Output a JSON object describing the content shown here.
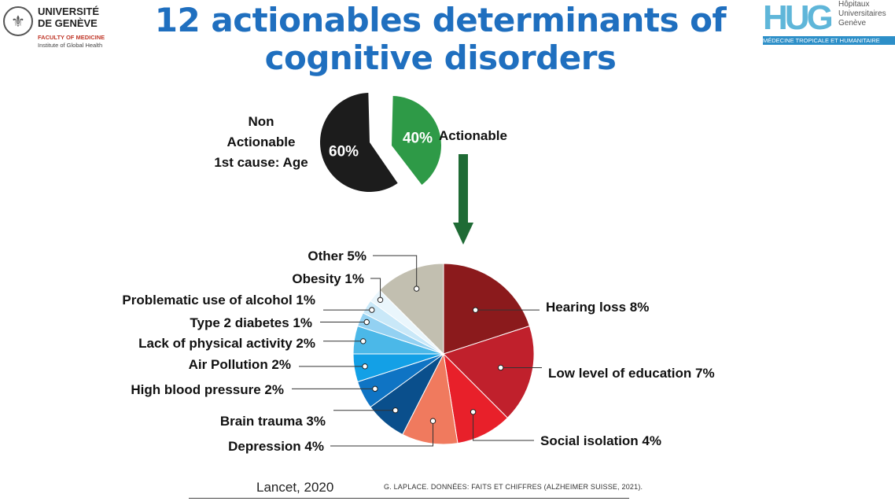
{
  "title_line1": "12 actionables determinants of",
  "title_line2": "cognitive disorders",
  "logos": {
    "unige": {
      "name_line1": "UNIVERSITÉ",
      "name_line2": "DE GENÈVE",
      "faculty": "FACULTY OF MEDICINE",
      "institute": "Institute of Global Health"
    },
    "hug": {
      "letters": "HUG",
      "line1": "Hôpitaux",
      "line2": "Universitaires",
      "line3": "Genève",
      "band": "MÉDECINE TROPICALE ET HUMANITAIRE"
    }
  },
  "footer": {
    "reference": "Lancet, 2020",
    "source": "G. LAPLACE. DONNÉES: FAITS ET CHIFFRES (ALZHEIMER SUISSE, 2021)."
  },
  "chart_data": [
    {
      "type": "pie",
      "slices": [
        {
          "label": "Actionable",
          "value": 40,
          "display": "40%",
          "color": "#2e9a47"
        },
        {
          "label": "Non Actionable 1st cause: Age",
          "value": 60,
          "display": "60%",
          "color": "#1c1c1c"
        }
      ],
      "labels": {
        "non_actionable": [
          "Non",
          "Actionable",
          "1st cause: Age"
        ],
        "actionable": "Actionable"
      }
    },
    {
      "type": "pie",
      "slices": [
        {
          "label": "Hearing loss 8%",
          "value": 8,
          "color": "#8b1a1c"
        },
        {
          "label": "Low level of education 7%",
          "value": 7,
          "color": "#c0202c"
        },
        {
          "label": "Social isolation 4%",
          "value": 4,
          "color": "#e8202a"
        },
        {
          "label": "Depression 4%",
          "value": 4,
          "color": "#f07a5e"
        },
        {
          "label": "Brain trauma 3%",
          "value": 3,
          "color": "#0a4f8c"
        },
        {
          "label": "High blood pressure 2%",
          "value": 2,
          "color": "#0f74c4"
        },
        {
          "label": "Air Pollution 2%",
          "value": 2,
          "color": "#13a0e6"
        },
        {
          "label": "Lack of physical activity 2%",
          "value": 2,
          "color": "#4bb8e8"
        },
        {
          "label": "Type 2 diabetes 1%",
          "value": 1,
          "color": "#93d1f2"
        },
        {
          "label": "Problematic use of alcohol 1%",
          "value": 1,
          "color": "#c9e8f8"
        },
        {
          "label": "Obesity 1%",
          "value": 1,
          "color": "#eaf6fc"
        },
        {
          "label": "Other 5%",
          "value": 5,
          "color": "#c2bfb0"
        }
      ]
    }
  ]
}
